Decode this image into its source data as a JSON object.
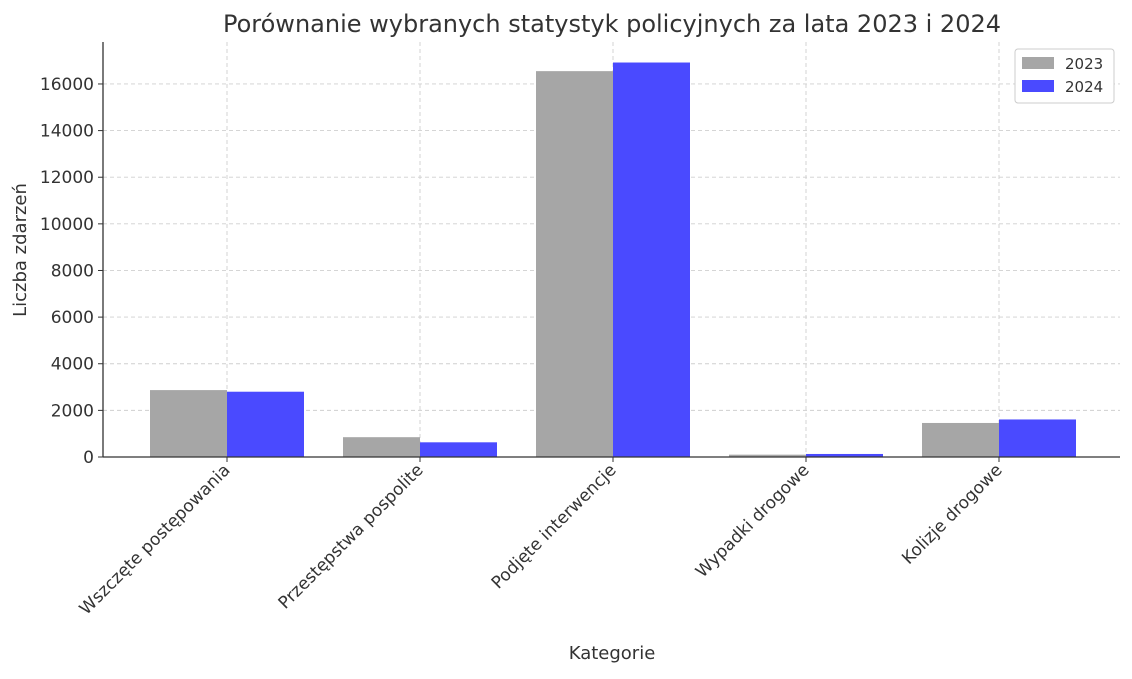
{
  "chart_data": {
    "type": "bar",
    "title": "Porównanie wybranych statystyk policyjnych za lata 2023 i 2024",
    "xlabel": "Kategorie",
    "ylabel": "Liczba zdarzeń",
    "categories": [
      "Wszczęte postępowania",
      "Przestępstwa pospolite",
      "Podjęte interwencje",
      "Wypadki drogowe",
      "Kolizje drogowe"
    ],
    "series": [
      {
        "name": "2023",
        "color": "#a6a6a6",
        "values": [
          2870,
          850,
          16550,
          100,
          1460
        ]
      },
      {
        "name": "2024",
        "color": "#4a4aff",
        "values": [
          2800,
          630,
          16920,
          130,
          1610
        ]
      }
    ],
    "ylim": [
      0,
      17800
    ],
    "yticks": [
      0,
      2000,
      4000,
      6000,
      8000,
      10000,
      12000,
      14000,
      16000
    ],
    "grid": true,
    "legend_position": "top-right"
  }
}
